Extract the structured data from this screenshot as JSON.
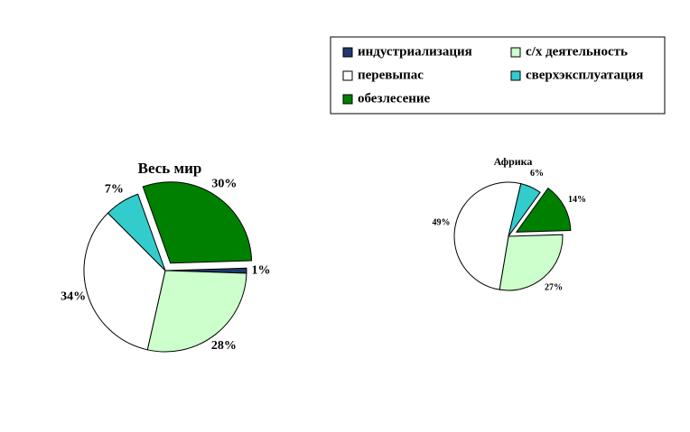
{
  "chart_data": [
    {
      "type": "pie",
      "title": "Весь мир",
      "categories": [
        "индустриализация",
        "с/х деятельность",
        "перевыпас",
        "сверхэксплуатация",
        "обезлесение"
      ],
      "colors": [
        "#1f3a6e",
        "#ccffcc",
        "#ffffff",
        "#33cccc",
        "#008000"
      ],
      "values": [
        1,
        28,
        34,
        7,
        30
      ],
      "value_labels": [
        "1%",
        "28%",
        "34%",
        "7%",
        "30%"
      ],
      "legend": true
    },
    {
      "type": "pie",
      "title": "Африка",
      "categories": [
        "индустриализация",
        "с/х деятельность",
        "перевыпас",
        "сверхэксплуатация",
        "обезлесение"
      ],
      "colors": [
        "#1f3a6e",
        "#ccffcc",
        "#ffffff",
        "#33cccc",
        "#008000"
      ],
      "values": [
        null,
        27,
        49,
        6,
        14
      ],
      "value_labels": [
        null,
        "27%",
        "49%",
        "6%",
        "14%"
      ],
      "legend": false
    }
  ]
}
